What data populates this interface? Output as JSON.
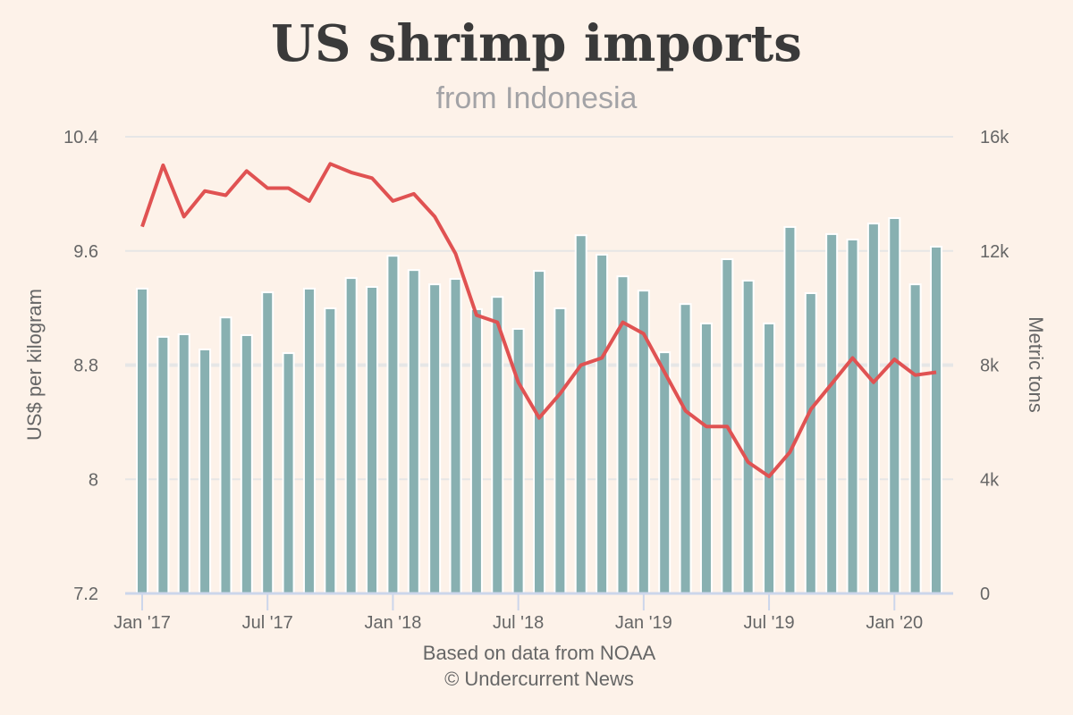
{
  "chart_data": {
    "type": "bar+line",
    "title": "US shrimp imports",
    "subtitle": "from Indonesia",
    "xlabel": "",
    "ylabel_left": "US$ per kilogram",
    "ylabel_right": "Metric tons",
    "footer": [
      "Based on data from NOAA",
      "© Undercurrent News"
    ],
    "x": [
      "Jan '17",
      "Feb '17",
      "Mar '17",
      "Apr '17",
      "May '17",
      "Jun '17",
      "Jul '17",
      "Aug '17",
      "Sep '17",
      "Oct '17",
      "Nov '17",
      "Dec '17",
      "Jan '18",
      "Feb '18",
      "Mar '18",
      "Apr '18",
      "May '18",
      "Jun '18",
      "Jul '18",
      "Aug '18",
      "Sep '18",
      "Oct '18",
      "Nov '18",
      "Dec '18",
      "Jan '19",
      "Feb '19",
      "Mar '19",
      "Apr '19",
      "May '19",
      "Jun '19",
      "Jul '19",
      "Aug '19",
      "Sep '19",
      "Oct '19",
      "Nov '19",
      "Dec '19",
      "Jan '20",
      "Feb '20",
      "Mar '20"
    ],
    "x_tick_labels": [
      "Jan '17",
      "Jul '17",
      "Jan '18",
      "Jul '18",
      "Jan '19",
      "Jul '19",
      "Jan '20"
    ],
    "x_tick_indices": [
      0,
      6,
      12,
      18,
      24,
      30,
      36
    ],
    "left_axis": {
      "ylim": [
        7.2,
        10.4
      ],
      "ticks": [
        7.2,
        8,
        8.8,
        9.6,
        10.4
      ],
      "tick_labels": [
        "7.2",
        "8",
        "8.8",
        "9.6",
        "10.4"
      ]
    },
    "right_axis": {
      "ylim": [
        0,
        16000
      ],
      "ticks": [
        0,
        4000,
        8000,
        12000,
        16000
      ],
      "tick_labels": [
        "0",
        "4k",
        "8k",
        "12k",
        "16k"
      ]
    },
    "grid": true,
    "legend": "none",
    "series": [
      {
        "name": "Metric tons",
        "type": "bar",
        "axis": "right",
        "color": "#88b0b1",
        "values": [
          10680,
          8990,
          9080,
          8550,
          9670,
          9050,
          10550,
          8420,
          10680,
          9990,
          11050,
          10740,
          11830,
          11330,
          10830,
          11020,
          9960,
          10390,
          9270,
          11300,
          9990,
          12550,
          11870,
          11110,
          10610,
          8450,
          10140,
          9460,
          11710,
          10960,
          9460,
          12840,
          10520,
          12590,
          12400,
          12960,
          13150,
          10830,
          12150
        ]
      },
      {
        "name": "US$ per kilogram",
        "type": "line",
        "axis": "left",
        "color": "#e05252",
        "values": [
          9.77,
          10.2,
          9.84,
          10.02,
          9.99,
          10.16,
          10.04,
          10.04,
          9.95,
          10.21,
          10.15,
          10.11,
          9.95,
          10.0,
          9.84,
          9.58,
          9.15,
          9.1,
          8.68,
          8.43,
          8.6,
          8.8,
          8.85,
          9.1,
          9.02,
          8.75,
          8.48,
          8.37,
          8.37,
          8.12,
          8.02,
          8.19,
          8.49,
          8.67,
          8.85,
          8.68,
          8.84,
          8.73,
          8.75
        ]
      }
    ]
  }
}
